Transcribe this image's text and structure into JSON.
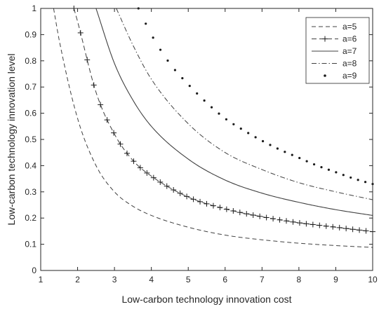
{
  "chart_data": {
    "type": "line",
    "xlabel": "Low-carbon technology innovation cost",
    "ylabel": "Low-carbon technology innovation level",
    "xlim": [
      1,
      10
    ],
    "ylim": [
      0,
      1
    ],
    "xticks": [
      "1",
      "2",
      "3",
      "4",
      "5",
      "6",
      "7",
      "8",
      "9",
      "10"
    ],
    "yticks": [
      "0",
      "0.1",
      "0.2",
      "0.3",
      "0.4",
      "0.5",
      "0.6",
      "0.7",
      "0.8",
      "0.9",
      "1"
    ],
    "grid": false,
    "legend_position": "top-right",
    "colors": {
      "line": "#404040",
      "marker": "#1a1a1a",
      "axis": "#262626"
    },
    "series": [
      {
        "name": "a=5",
        "style": "dashed",
        "x": [
          1.35,
          1.5,
          2,
          2.5,
          3,
          3.5,
          4,
          5,
          6,
          7,
          8,
          9,
          10
        ],
        "y": [
          1.0,
          0.88,
          0.58,
          0.4,
          0.3,
          0.245,
          0.21,
          0.165,
          0.135,
          0.117,
          0.104,
          0.095,
          0.088
        ]
      },
      {
        "name": "a=6",
        "style": "dashed-plus",
        "x": [
          1.9,
          2,
          2.5,
          3,
          3.5,
          4,
          5,
          6,
          7,
          8,
          9,
          10
        ],
        "y": [
          1.0,
          0.95,
          0.68,
          0.52,
          0.42,
          0.36,
          0.28,
          0.235,
          0.205,
          0.182,
          0.165,
          0.148
        ]
      },
      {
        "name": "a=7",
        "style": "solid",
        "x": [
          2.5,
          3,
          3.5,
          4,
          5,
          6,
          7,
          8,
          9,
          10
        ],
        "y": [
          1.0,
          0.79,
          0.65,
          0.55,
          0.425,
          0.345,
          0.295,
          0.26,
          0.232,
          0.21
        ]
      },
      {
        "name": "a=8",
        "style": "dashdot",
        "x": [
          3.05,
          3.5,
          4,
          5,
          6,
          7,
          8,
          9,
          10
        ],
        "y": [
          1.0,
          0.86,
          0.73,
          0.56,
          0.45,
          0.385,
          0.335,
          0.3,
          0.27
        ]
      },
      {
        "name": "a=9",
        "style": "dotted",
        "x": [
          3.65,
          4,
          4.5,
          5,
          5.5,
          6,
          6.5,
          7,
          7.5,
          8,
          8.5,
          9,
          9.5,
          10
        ],
        "y": [
          1.0,
          0.9,
          0.79,
          0.71,
          0.64,
          0.58,
          0.535,
          0.495,
          0.46,
          0.43,
          0.4,
          0.375,
          0.35,
          0.33
        ]
      }
    ]
  }
}
